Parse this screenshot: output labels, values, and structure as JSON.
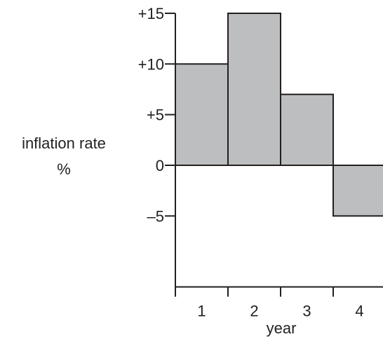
{
  "chart_data": {
    "type": "bar",
    "categories": [
      "1",
      "2",
      "3",
      "4"
    ],
    "values": [
      10,
      15,
      7,
      -5
    ],
    "xlabel": "year",
    "ylabel_lines": [
      "inflation rate",
      "%"
    ],
    "ylim": [
      -12,
      15
    ],
    "yticks": [
      15,
      10,
      5,
      0,
      -5
    ],
    "ytick_labels": [
      "+15",
      "+10",
      "+5",
      "0",
      "–5"
    ],
    "grid": false,
    "legend": "none",
    "bar_color": "#bcbec0",
    "line_color": "#231f20"
  }
}
